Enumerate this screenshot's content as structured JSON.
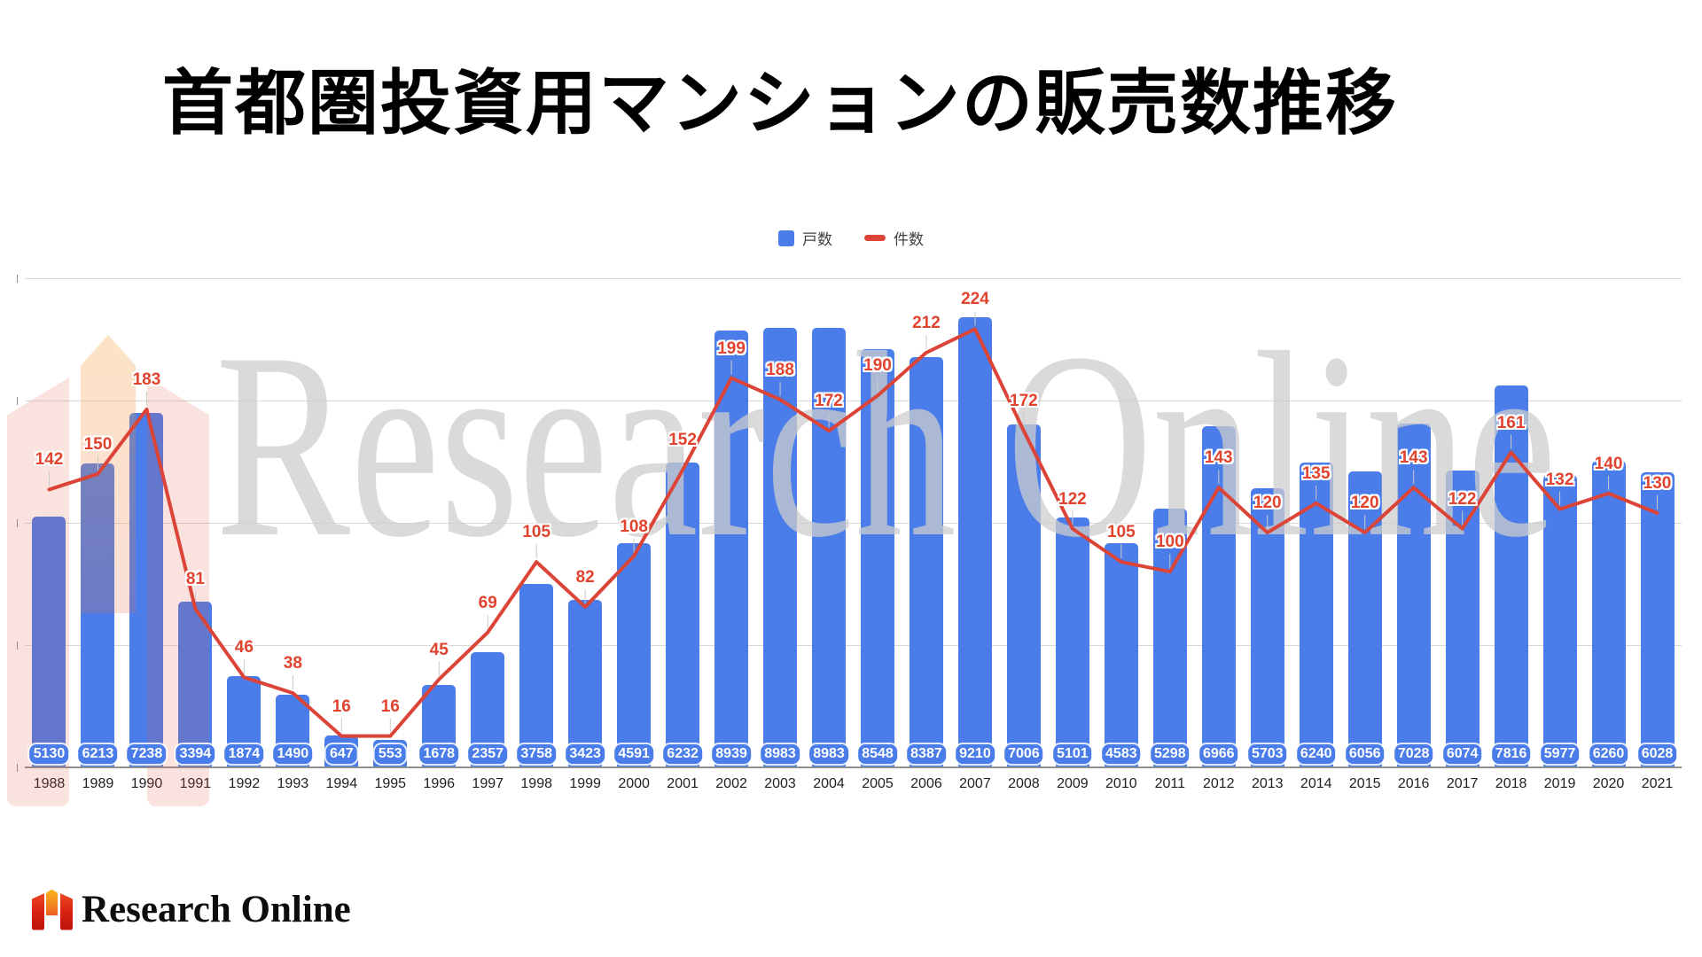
{
  "header": {
    "title": "首都圏投資用マンションの販売数推移"
  },
  "watermark": {
    "text": "Research Online"
  },
  "footer": {
    "brand": "Research Online"
  },
  "chart_data": {
    "type": "bar+line",
    "title": "首都圏投資用マンションの販売数推移",
    "legend_position": "top",
    "grid": true,
    "categories": [
      "1988",
      "1989",
      "1990",
      "1991",
      "1992",
      "1993",
      "1994",
      "1995",
      "1996",
      "1997",
      "1998",
      "1999",
      "2000",
      "2001",
      "2002",
      "2003",
      "2004",
      "2005",
      "2006",
      "2007",
      "2008",
      "2009",
      "2010",
      "2011",
      "2012",
      "2013",
      "2014",
      "2015",
      "2016",
      "2017",
      "2018",
      "2019",
      "2020",
      "2021"
    ],
    "series": [
      {
        "name": "戸数",
        "type": "bar",
        "color": "#4a7de9",
        "label_text_color": "#ffffff",
        "axis": {
          "min": 0,
          "max": 10000,
          "grid_step": 2500
        },
        "values": [
          5130,
          6213,
          7238,
          3394,
          1874,
          1490,
          647,
          553,
          1678,
          2357,
          3758,
          3423,
          4591,
          6232,
          8939,
          8983,
          8983,
          8548,
          8387,
          9210,
          7006,
          5101,
          4583,
          5298,
          6966,
          5703,
          6240,
          6056,
          7028,
          6074,
          7816,
          5977,
          6260,
          6028
        ]
      },
      {
        "name": "件数",
        "type": "line",
        "color": "#db4437",
        "label_color": "#e2432e",
        "axis": {
          "min": 0,
          "max": 250
        },
        "values": [
          142,
          150,
          183,
          81,
          46,
          38,
          16,
          16,
          45,
          69,
          105,
          82,
          108,
          152,
          199,
          188,
          172,
          190,
          212,
          224,
          172,
          122,
          105,
          100,
          143,
          120,
          135,
          120,
          143,
          122,
          161,
          132,
          140,
          130
        ]
      }
    ],
    "colors": {
      "gridline": "#d8d8d8",
      "baseline": "#8f8f8f",
      "year_label": "#202124"
    }
  }
}
